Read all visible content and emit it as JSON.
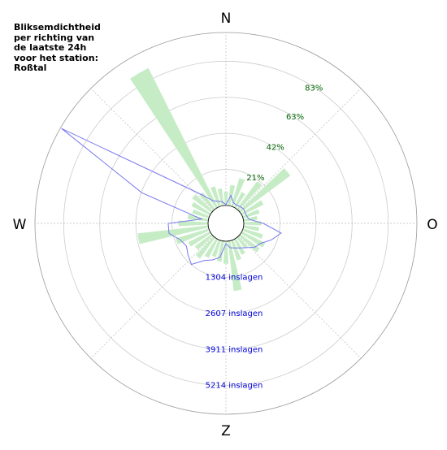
{
  "chart_data": {
    "type": "polar",
    "title": "Bliksemdichtheid per richting van de laatste 24h voor het station: Roßtal",
    "directions": [
      "N",
      "O",
      "Z",
      "W"
    ],
    "x": [
      0,
      10,
      20,
      30,
      40,
      50,
      60,
      70,
      80,
      90,
      100,
      110,
      120,
      130,
      140,
      150,
      160,
      170,
      180,
      190,
      200,
      210,
      220,
      230,
      240,
      250,
      260,
      270,
      280,
      290,
      300,
      310,
      320,
      330,
      340,
      350
    ],
    "series": [
      {
        "kind": "bar",
        "axis": "r2",
        "color": "#c6ecc6",
        "values": [
          8,
          12,
          17,
          10,
          20,
          36,
          14,
          10,
          8,
          10,
          9,
          12,
          15,
          14,
          8,
          10,
          12,
          29,
          13,
          12,
          10,
          12,
          15,
          12,
          14,
          20,
          41,
          17,
          12,
          10,
          12,
          14,
          12,
          90,
          12,
          10
        ]
      },
      {
        "kind": "line",
        "color": "#7878ee",
        "values": [
          30,
          380,
          150,
          120,
          150,
          180,
          150,
          150,
          200,
          700,
          1380,
          1100,
          800,
          700,
          500,
          380,
          300,
          250,
          90,
          600,
          760,
          900,
          1290,
          1140,
          1000,
          1100,
          1440,
          1440,
          250,
          2580,
          6210,
          1580,
          700,
          300,
          200,
          150
        ]
      }
    ],
    "rlim": [
      0,
      6250
    ],
    "rticks": [
      {
        "value": 1304,
        "label": "1304 inslagen"
      },
      {
        "value": 2607,
        "label": "2607 inslagen"
      },
      {
        "value": 3911,
        "label": "3911 inslagen"
      },
      {
        "value": 5214,
        "label": "5214 inslagen"
      }
    ],
    "rtick_color": "#0000dd",
    "r2lim": [
      0,
      100
    ],
    "r2ticks": [
      {
        "value": 21,
        "label": "21%"
      },
      {
        "value": 42,
        "label": "42%"
      },
      {
        "value": 63,
        "label": "63%"
      },
      {
        "value": 83,
        "label": "83%"
      }
    ],
    "r2tick_color": "#006400"
  }
}
